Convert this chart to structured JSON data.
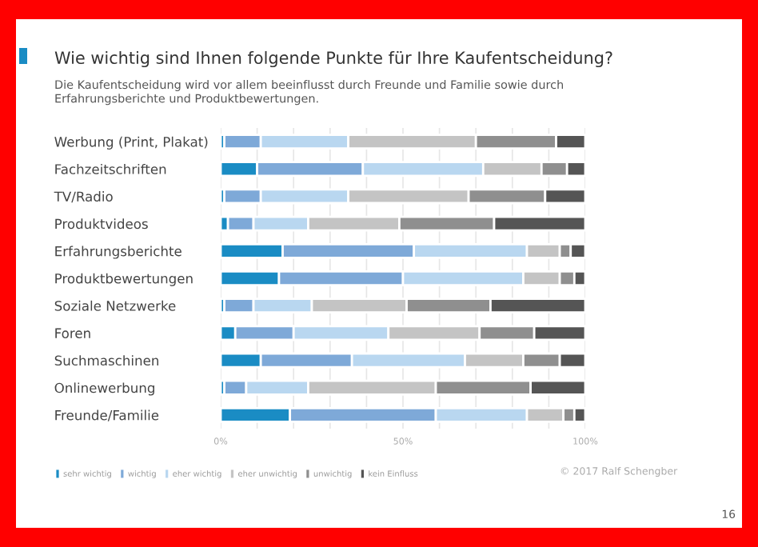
{
  "chart_data": {
    "type": "bar",
    "orientation": "horizontal",
    "stacked": true,
    "title": "Wie wichtig sind Ihnen folgende Punkte für Ihre Kaufentscheidung?",
    "subtitle": "Die Kaufentscheidung wird vor allem beeinflusst durch Freunde und Familie sowie durch\nErfahrungsberichte und Produktbewertungen.",
    "categories": [
      "Werbung (Print, Plakat)",
      "Fachzeitschriften",
      "TV/Radio",
      "Produktvideos",
      "Erfahrungsberichte",
      "Produktbewertungen",
      "Soziale Netzwerke",
      "Foren",
      "Suchmaschinen",
      "Onlinewerbung",
      "Freunde/Familie"
    ],
    "series": [
      {
        "name": "sehr wichtig",
        "color": "#1a8cc4",
        "values": [
          1,
          10,
          1,
          2,
          17,
          16,
          1,
          4,
          11,
          1,
          19
        ]
      },
      {
        "name": "wichtig",
        "color": "#7ea9d8",
        "values": [
          10,
          29,
          10,
          7,
          36,
          34,
          8,
          16,
          25,
          6,
          40
        ]
      },
      {
        "name": "eher wichtig",
        "color": "#b9d7f0",
        "values": [
          24,
          33,
          24,
          15,
          31,
          33,
          16,
          26,
          31,
          17,
          25
        ]
      },
      {
        "name": "eher unwichtig",
        "color": "#c4c4c4",
        "values": [
          35,
          16,
          33,
          25,
          9,
          10,
          26,
          25,
          16,
          35,
          10
        ]
      },
      {
        "name": "unwichtig",
        "color": "#8f8f8f",
        "values": [
          22,
          7,
          21,
          26,
          3,
          4,
          23,
          15,
          10,
          26,
          3
        ]
      },
      {
        "name": "kein Einfluss",
        "color": "#555555",
        "values": [
          8,
          5,
          11,
          25,
          4,
          3,
          26,
          14,
          7,
          15,
          3
        ]
      }
    ],
    "xlim": [
      0,
      100
    ],
    "xticks": [
      {
        "value": 0,
        "label": "0%"
      },
      {
        "value": 10,
        "label": null
      },
      {
        "value": 20,
        "label": null
      },
      {
        "value": 30,
        "label": null
      },
      {
        "value": 40,
        "label": null
      },
      {
        "value": 50,
        "label": "50%"
      },
      {
        "value": 60,
        "label": null
      },
      {
        "value": 70,
        "label": null
      },
      {
        "value": 80,
        "label": null
      },
      {
        "value": 90,
        "label": null
      },
      {
        "value": 100,
        "label": "100%"
      }
    ],
    "grid": "x",
    "legend": "bottom",
    "annotations": [
      "© 2017 Ralf Schengber",
      "16"
    ]
  }
}
